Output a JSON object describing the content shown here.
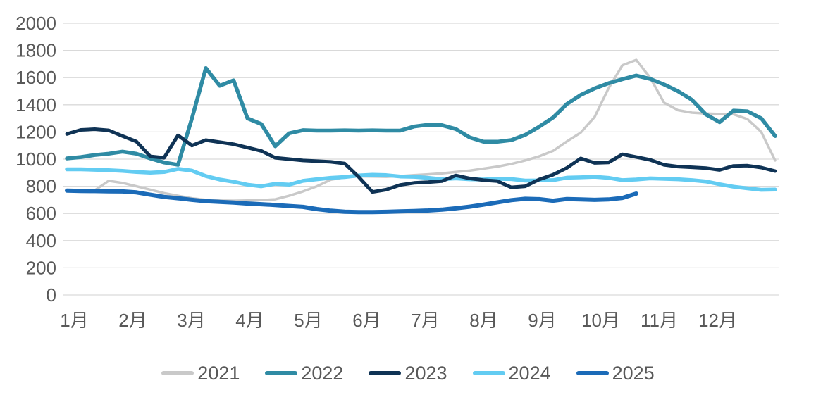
{
  "chart_data": {
    "type": "line",
    "title": "",
    "x_axis": {
      "labels": [
        "1月",
        "2月",
        "3月",
        "4月",
        "5月",
        "6月",
        "7月",
        "8月",
        "9月",
        "10月",
        "11月",
        "12月"
      ],
      "unit": "month (weekly data points)"
    },
    "y_axis": {
      "min": 0,
      "max": 2000,
      "step": 200,
      "tick_labels": [
        "0",
        "200",
        "400",
        "600",
        "800",
        "1000",
        "1200",
        "1400",
        "1600",
        "1800",
        "2000"
      ]
    },
    "grid": true,
    "grid_color": "#d9d9d9",
    "label_color": "#595959",
    "legend_position": "bottom",
    "draw_order": [
      0,
      1,
      3,
      4,
      2
    ],
    "series": [
      {
        "name": "2021",
        "color": "#c9c9c9",
        "stroke_width": 3.5,
        "values": [
          770,
          768,
          770,
          840,
          825,
          800,
          775,
          750,
          730,
          712,
          700,
          695,
          694,
          696,
          698,
          704,
          730,
          762,
          800,
          848,
          866,
          873,
          872,
          870,
          875,
          882,
          888,
          895,
          905,
          915,
          930,
          945,
          965,
          990,
          1020,
          1060,
          1130,
          1195,
          1310,
          1520,
          1690,
          1730,
          1600,
          1415,
          1360,
          1342,
          1335,
          1332,
          1330,
          1295,
          1200,
          990
        ]
      },
      {
        "name": "2022",
        "color": "#2f8ba4",
        "stroke_width": 5.5,
        "values": [
          1005,
          1015,
          1030,
          1040,
          1055,
          1040,
          1005,
          975,
          958,
          1300,
          1670,
          1540,
          1580,
          1300,
          1258,
          1095,
          1190,
          1213,
          1210,
          1210,
          1212,
          1210,
          1212,
          1210,
          1210,
          1240,
          1253,
          1250,
          1222,
          1160,
          1128,
          1128,
          1140,
          1178,
          1238,
          1305,
          1405,
          1472,
          1520,
          1558,
          1588,
          1615,
          1590,
          1549,
          1500,
          1437,
          1330,
          1272,
          1357,
          1352,
          1300,
          1170
        ]
      },
      {
        "name": "2023",
        "color": "#0f3355",
        "stroke_width": 5,
        "values": [
          1185,
          1215,
          1220,
          1212,
          1170,
          1130,
          1020,
          1010,
          1175,
          1100,
          1140,
          1125,
          1110,
          1085,
          1060,
          1010,
          1000,
          990,
          985,
          980,
          968,
          870,
          758,
          775,
          810,
          825,
          830,
          838,
          880,
          858,
          845,
          838,
          792,
          800,
          850,
          885,
          935,
          1005,
          972,
          975,
          1035,
          1015,
          995,
          958,
          945,
          940,
          934,
          920,
          950,
          952,
          938,
          912
        ]
      },
      {
        "name": "2024",
        "color": "#63ccf2",
        "stroke_width": 5.5,
        "values": [
          925,
          925,
          922,
          918,
          913,
          905,
          900,
          905,
          928,
          915,
          875,
          850,
          833,
          812,
          800,
          818,
          812,
          840,
          852,
          862,
          868,
          880,
          885,
          882,
          872,
          870,
          862,
          852,
          858,
          852,
          850,
          855,
          853,
          842,
          843,
          845,
          863,
          866,
          870,
          862,
          845,
          850,
          858,
          855,
          852,
          845,
          836,
          815,
          797,
          785,
          774,
          776
        ]
      },
      {
        "name": "2025",
        "color": "#1b6bb8",
        "stroke_width": 6,
        "values": [
          768,
          766,
          765,
          763,
          762,
          755,
          738,
          722,
          712,
          700,
          690,
          685,
          680,
          673,
          668,
          662,
          655,
          648,
          632,
          620,
          613,
          610,
          610,
          612,
          615,
          618,
          622,
          628,
          638,
          650,
          665,
          682,
          698,
          708,
          705,
          694,
          706,
          703,
          700,
          703,
          714,
          746
        ]
      }
    ]
  }
}
